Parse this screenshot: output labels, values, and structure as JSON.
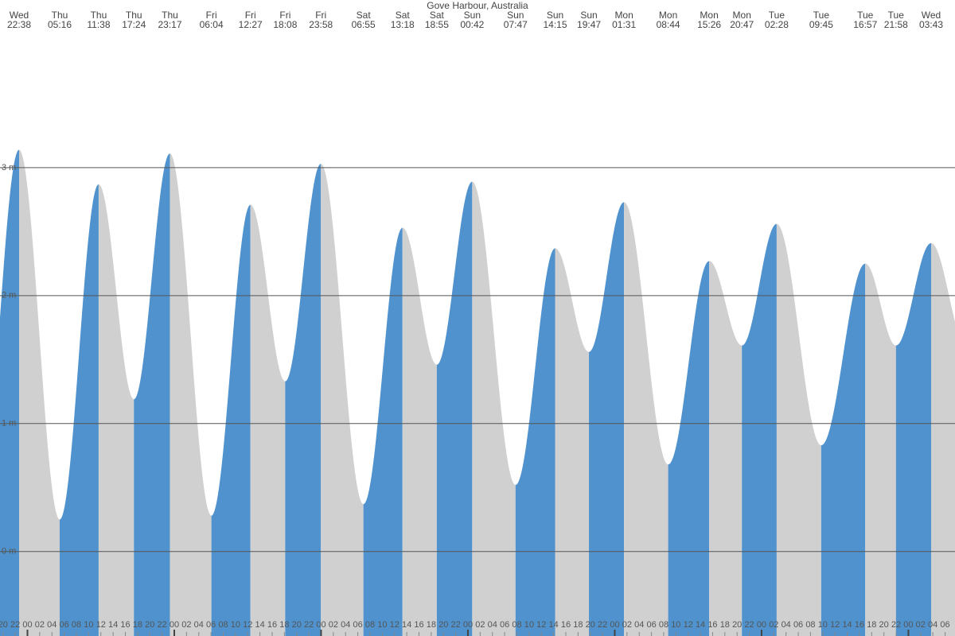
{
  "chart_data": {
    "type": "tide",
    "title": "Gove Harbour, Australia",
    "days": [
      "Wed",
      "Thu",
      "Thu",
      "Thu",
      "Thu",
      "Fri",
      "Fri",
      "Fri",
      "Fri",
      "Sat",
      "Sat",
      "Sat",
      "Sun",
      "Sun",
      "Sun",
      "Sun",
      "Mon",
      "Mon",
      "Mon",
      "Mon",
      "Tue",
      "Tue",
      "Tue",
      "Tue",
      "Wed"
    ],
    "times": [
      "22:38",
      "05:16",
      "11:38",
      "17:24",
      "23:17",
      "06:04",
      "12:27",
      "18:08",
      "23:58",
      "06:55",
      "13:18",
      "18:55",
      "00:42",
      "07:47",
      "14:15",
      "19:47",
      "01:31",
      "08:44",
      "15:26",
      "20:47",
      "02:28",
      "09:45",
      "16:57",
      "21:58",
      "03:43"
    ],
    "values": [
      3.14,
      0.25,
      2.87,
      1.19,
      3.11,
      0.28,
      2.71,
      1.33,
      3.03,
      0.37,
      2.53,
      1.46,
      2.89,
      0.52,
      2.37,
      1.56,
      2.73,
      0.68,
      2.27,
      1.61,
      2.56,
      0.83,
      2.25,
      1.61,
      2.41
    ],
    "rise_color": "#4f92cd",
    "fall_color": "#d0d0d0",
    "ylim": [
      -0.66,
      4.31
    ],
    "yticks": [
      {
        "value": 0,
        "label": "0 m"
      },
      {
        "value": 1,
        "label": "1 m"
      },
      {
        "value": 2,
        "label": "2 m"
      },
      {
        "value": 3,
        "label": "3 m"
      }
    ],
    "grid": true,
    "hour_labels": [
      "20",
      "22",
      "00",
      "02",
      "04",
      "06",
      "08",
      "10",
      "12",
      "14",
      "16",
      "18",
      "20",
      "22",
      "00",
      "02",
      "04",
      "06",
      "08",
      "10",
      "12",
      "14",
      "16",
      "18",
      "20",
      "22",
      "00",
      "02",
      "04",
      "06",
      "08",
      "10",
      "12",
      "14",
      "16",
      "18",
      "20",
      "22",
      "00",
      "02",
      "04",
      "06",
      "08",
      "10",
      "12",
      "14",
      "16",
      "18",
      "20",
      "22",
      "00",
      "02",
      "04",
      "06",
      "08",
      "10",
      "12",
      "14",
      "16",
      "18",
      "20",
      "22",
      "00",
      "02",
      "04",
      "06",
      "08",
      "10",
      "12",
      "14",
      "16",
      "18",
      "20",
      "22",
      "00",
      "02",
      "04",
      "06"
    ]
  }
}
